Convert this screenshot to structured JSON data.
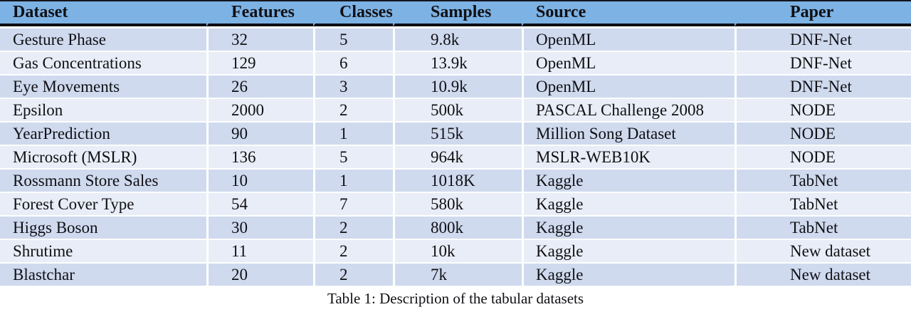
{
  "table": {
    "columns": [
      {
        "label": "Dataset"
      },
      {
        "label": "Features"
      },
      {
        "label": "Classes"
      },
      {
        "label": "Samples"
      },
      {
        "label": "Source"
      },
      {
        "label": "Paper"
      }
    ],
    "rows": [
      [
        "Gesture Phase",
        "32",
        "5",
        "9.8k",
        "OpenML",
        "DNF-Net"
      ],
      [
        "Gas Concentrations",
        "129",
        "6",
        "13.9k",
        "OpenML",
        "DNF-Net"
      ],
      [
        "Eye Movements",
        "26",
        "3",
        "10.9k",
        "OpenML",
        "DNF-Net"
      ],
      [
        "Epsilon",
        "2000",
        "2",
        "500k",
        "PASCAL Challenge 2008",
        "NODE"
      ],
      [
        "YearPrediction",
        "90",
        "1",
        "515k",
        "Million Song Dataset",
        "NODE"
      ],
      [
        "Microsoft (MSLR)",
        "136",
        "5",
        "964k",
        "MSLR-WEB10K",
        "NODE"
      ],
      [
        "Rossmann Store Sales",
        "10",
        "1",
        "1018K",
        "Kaggle",
        "TabNet"
      ],
      [
        "Forest Cover Type",
        "54",
        "7",
        "580k",
        "Kaggle",
        "TabNet"
      ],
      [
        "Higgs Boson",
        "30",
        "2",
        "800k",
        "Kaggle",
        "TabNet"
      ],
      [
        "Shrutime",
        "11",
        "2",
        "10k",
        "Kaggle",
        "New dataset"
      ],
      [
        "Blastchar",
        "20",
        "2",
        "7k",
        "Kaggle",
        "New dataset"
      ]
    ]
  },
  "caption": "Table 1: Description of the tabular datasets",
  "colors": {
    "header_bg": "#7DB2E4",
    "row_odd_bg": "#CFDAEE",
    "row_even_bg": "#E9EDF7",
    "rule": "#0e0e14"
  }
}
